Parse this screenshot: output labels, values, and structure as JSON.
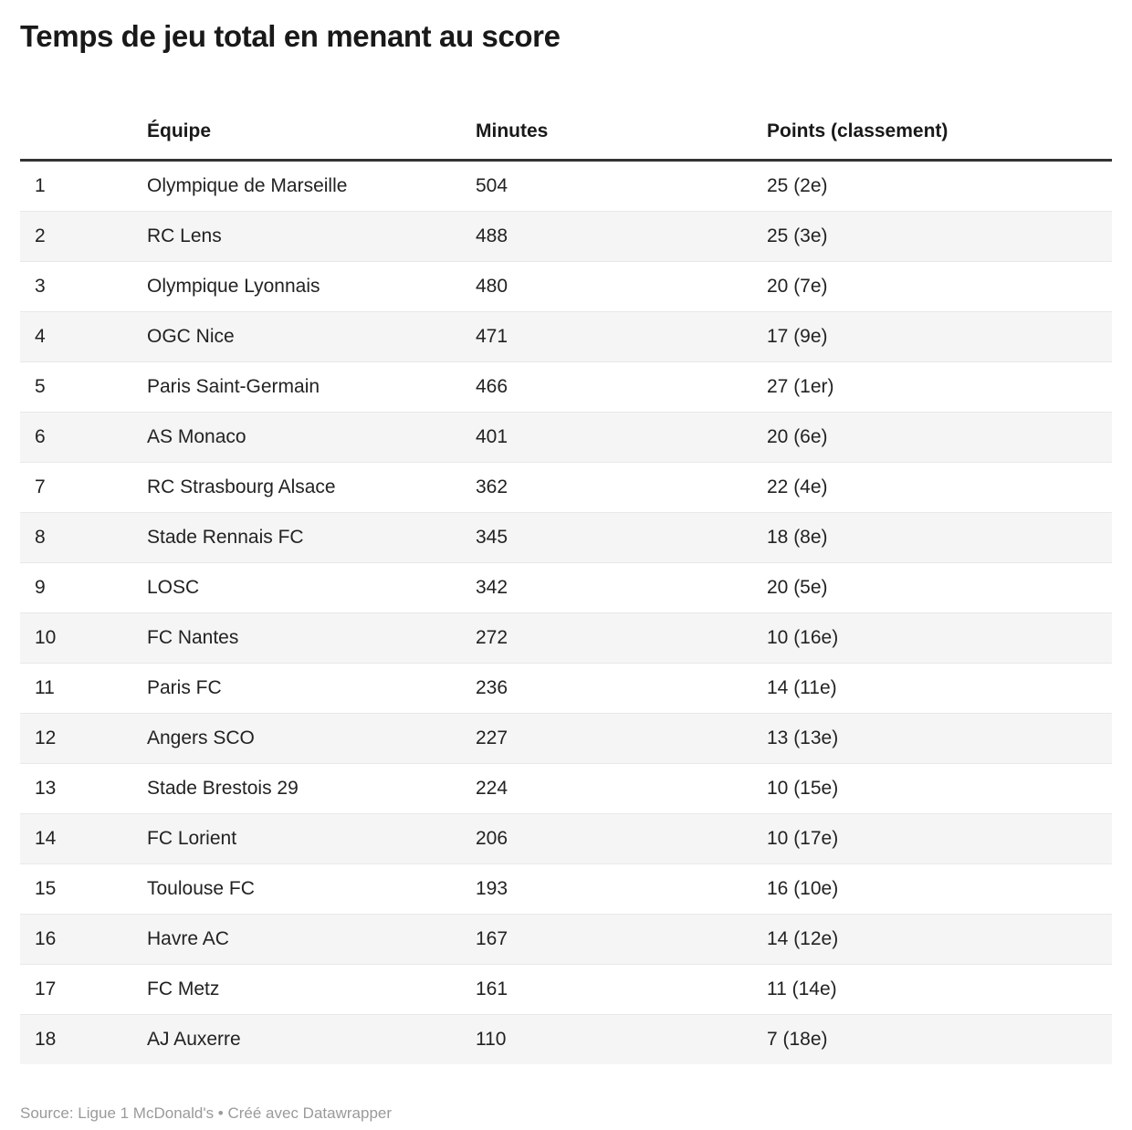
{
  "page": {
    "title": "Temps de jeu total en menant au score",
    "footer_text": "Source: Ligue 1 McDonald's • Créé avec Datawrapper"
  },
  "colors": {
    "title_text": "#191919",
    "body_text": "#222222",
    "header_rule": "#333333",
    "row_stripe": "#f5f5f5",
    "row_border": "#e8e8e8",
    "footer_text": "#9a9a9a",
    "background": "#ffffff"
  },
  "chart_data": {
    "type": "table",
    "title": "Temps de jeu total en menant au score",
    "source": "Ligue 1 McDonald's",
    "credit": "Créé avec Datawrapper",
    "headers": {
      "rank": "",
      "team": "Équipe",
      "minutes": "Minutes",
      "points": "Points (classement)"
    },
    "rows": [
      {
        "rank": "1",
        "team": "Olympique de Marseille",
        "minutes": 504,
        "points": "25 (2e)"
      },
      {
        "rank": "2",
        "team": "RC Lens",
        "minutes": 488,
        "points": "25 (3e)"
      },
      {
        "rank": "3",
        "team": "Olympique Lyonnais",
        "minutes": 480,
        "points": "20 (7e)"
      },
      {
        "rank": "4",
        "team": "OGC Nice",
        "minutes": 471,
        "points": "17 (9e)"
      },
      {
        "rank": "5",
        "team": "Paris Saint-Germain",
        "minutes": 466,
        "points": "27 (1er)"
      },
      {
        "rank": "6",
        "team": "AS Monaco",
        "minutes": 401,
        "points": "20 (6e)"
      },
      {
        "rank": "7",
        "team": "RC Strasbourg Alsace",
        "minutes": 362,
        "points": "22 (4e)"
      },
      {
        "rank": "8",
        "team": "Stade Rennais FC",
        "minutes": 345,
        "points": "18 (8e)"
      },
      {
        "rank": "9",
        "team": "LOSC",
        "minutes": 342,
        "points": "20 (5e)"
      },
      {
        "rank": "10",
        "team": "FC Nantes",
        "minutes": 272,
        "points": "10 (16e)"
      },
      {
        "rank": "11",
        "team": "Paris FC",
        "minutes": 236,
        "points": "14 (11e)"
      },
      {
        "rank": "12",
        "team": "Angers SCO",
        "minutes": 227,
        "points": "13 (13e)"
      },
      {
        "rank": "13",
        "team": "Stade Brestois 29",
        "minutes": 224,
        "points": "10 (15e)"
      },
      {
        "rank": "14",
        "team": "FC Lorient",
        "minutes": 206,
        "points": "10 (17e)"
      },
      {
        "rank": "15",
        "team": "Toulouse FC",
        "minutes": 193,
        "points": "16 (10e)"
      },
      {
        "rank": "16",
        "team": "Havre AC",
        "minutes": 167,
        "points": "14 (12e)"
      },
      {
        "rank": "17",
        "team": "FC Metz",
        "minutes": 161,
        "points": "11 (14e)"
      },
      {
        "rank": "18",
        "team": "AJ Auxerre",
        "minutes": 110,
        "points": "7 (18e)"
      }
    ]
  }
}
